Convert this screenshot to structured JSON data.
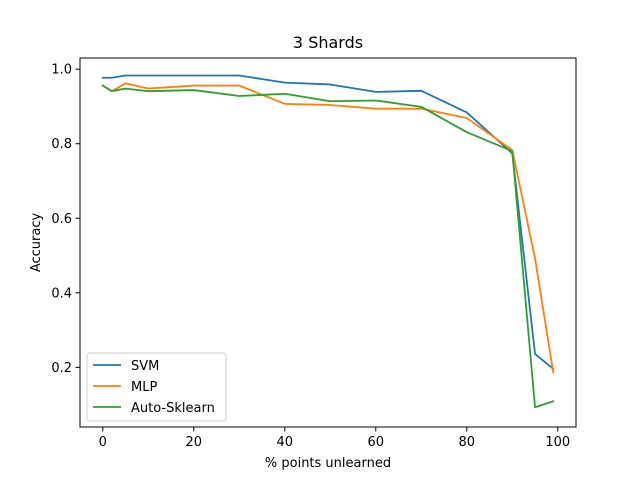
{
  "chart_data": {
    "type": "line",
    "title": "3 Shards",
    "xlabel": "% points unlearned",
    "ylabel": "Accuracy",
    "xlim": [
      -5,
      104
    ],
    "ylim": [
      0.04,
      1.03
    ],
    "xticks": [
      0,
      20,
      40,
      60,
      80,
      100
    ],
    "xtick_labels": [
      "0",
      "20",
      "40",
      "60",
      "80",
      "100"
    ],
    "yticks": [
      0.2,
      0.4,
      0.6,
      0.8,
      1.0
    ],
    "ytick_labels": [
      "0.2",
      "0.4",
      "0.6",
      "0.8",
      "1.0"
    ],
    "grid": false,
    "legend_position": "lower-left",
    "series": [
      {
        "name": "SVM",
        "color": "#1f77b4",
        "x": [
          0,
          2,
          5,
          10,
          20,
          30,
          40,
          50,
          60,
          70,
          80,
          90,
          95,
          99
        ],
        "y": [
          0.977,
          0.977,
          0.983,
          0.983,
          0.983,
          0.983,
          0.964,
          0.959,
          0.939,
          0.942,
          0.884,
          0.774,
          0.236,
          0.196
        ]
      },
      {
        "name": "MLP",
        "color": "#ff7f0e",
        "x": [
          0,
          2,
          5,
          10,
          20,
          30,
          40,
          50,
          60,
          70,
          80,
          90,
          95,
          99
        ],
        "y": [
          0.956,
          0.941,
          0.962,
          0.948,
          0.956,
          0.956,
          0.907,
          0.904,
          0.894,
          0.894,
          0.869,
          0.783,
          0.492,
          0.187
        ]
      },
      {
        "name": "Auto-Sklearn",
        "color": "#2ca02c",
        "x": [
          0,
          2,
          5,
          10,
          20,
          30,
          40,
          50,
          60,
          70,
          80,
          90,
          95,
          99
        ],
        "y": [
          0.956,
          0.941,
          0.948,
          0.941,
          0.944,
          0.928,
          0.934,
          0.914,
          0.916,
          0.899,
          0.831,
          0.78,
          0.093,
          0.109
        ]
      }
    ]
  }
}
